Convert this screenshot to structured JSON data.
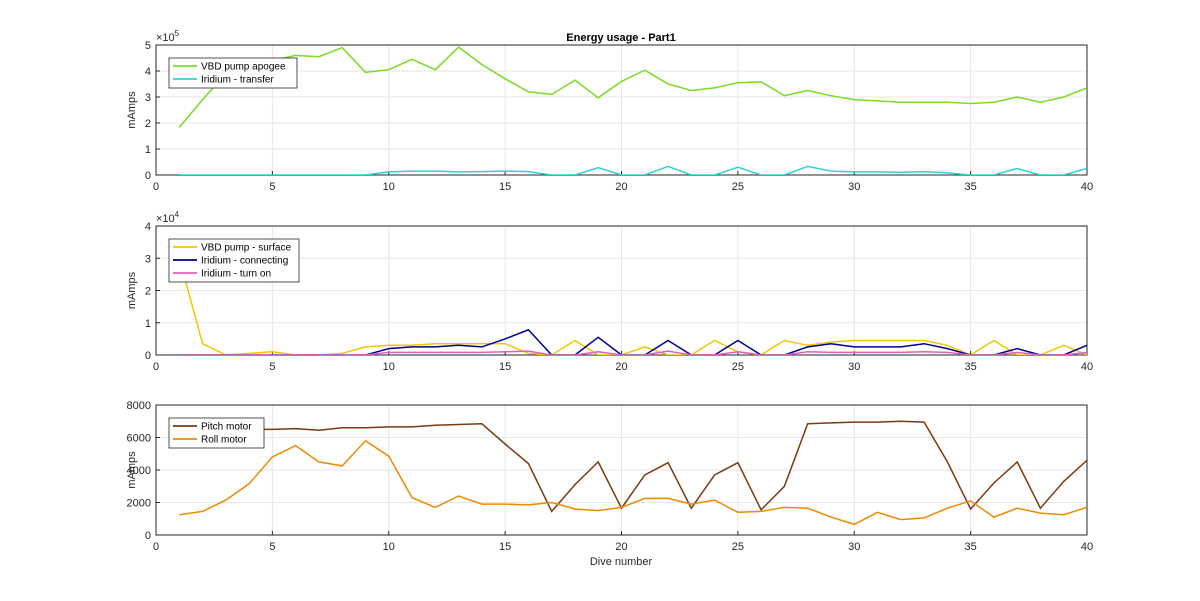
{
  "title": "Energy usage - Part1",
  "xlabel": "Dive number",
  "chart_data": [
    {
      "type": "line",
      "title": "Energy usage - Part1",
      "xlabel": "",
      "ylabel": "mAmps",
      "xlim": [
        0,
        40
      ],
      "ylim": [
        0,
        5
      ],
      "exponent": "5",
      "xticks": [
        "0",
        "5",
        "10",
        "15",
        "20",
        "25",
        "30",
        "35",
        "40"
      ],
      "yticks": [
        "0",
        "1",
        "2",
        "3",
        "4",
        "5"
      ],
      "grid": true,
      "legend_position": "top-left",
      "x": [
        1,
        2,
        3,
        4,
        5,
        6,
        7,
        8,
        9,
        10,
        11,
        12,
        13,
        14,
        15,
        16,
        17,
        18,
        19,
        20,
        21,
        22,
        23,
        24,
        25,
        26,
        27,
        28,
        29,
        30,
        31,
        32,
        33,
        34,
        35,
        36,
        37,
        38,
        39,
        40
      ],
      "series": [
        {
          "name": "VBD pump apogee",
          "color": "#77dd22",
          "values": [
            1.83,
            2.9,
            3.9,
            4.2,
            4.4,
            4.6,
            4.55,
            4.9,
            3.95,
            4.05,
            4.45,
            4.05,
            4.92,
            4.25,
            3.7,
            3.2,
            3.1,
            3.65,
            2.97,
            3.6,
            4.03,
            3.5,
            3.25,
            3.35,
            3.55,
            3.58,
            3.05,
            3.25,
            3.05,
            2.9,
            2.85,
            2.8,
            2.8,
            2.8,
            2.75,
            2.8,
            3.0,
            2.8,
            3.0,
            3.35
          ]
        },
        {
          "name": "Iridium - transfer",
          "color": "#2ed2d8",
          "values": [
            0,
            0,
            0,
            0,
            0,
            0,
            0,
            0,
            0,
            0.12,
            0.15,
            0.15,
            0.12,
            0.13,
            0.15,
            0.13,
            0,
            0,
            0.28,
            0,
            0,
            0.33,
            0,
            0,
            0.3,
            0,
            0,
            0.33,
            0.15,
            0.12,
            0.12,
            0.1,
            0.13,
            0.08,
            0,
            0,
            0.25,
            0,
            0,
            0.25
          ]
        }
      ]
    },
    {
      "type": "line",
      "title": "",
      "xlabel": "",
      "ylabel": "mAmps",
      "xlim": [
        0,
        40
      ],
      "ylim": [
        0,
        4
      ],
      "exponent": "4",
      "xticks": [
        "0",
        "5",
        "10",
        "15",
        "20",
        "25",
        "30",
        "35",
        "40"
      ],
      "yticks": [
        "0",
        "1",
        "2",
        "3",
        "4"
      ],
      "grid": true,
      "legend_position": "top-left",
      "x": [
        1,
        2,
        3,
        4,
        5,
        6,
        7,
        8,
        9,
        10,
        11,
        12,
        13,
        14,
        15,
        16,
        17,
        18,
        19,
        20,
        21,
        22,
        23,
        24,
        25,
        26,
        27,
        28,
        29,
        30,
        31,
        32,
        33,
        34,
        35,
        36,
        37,
        38,
        39,
        40
      ],
      "series": [
        {
          "name": "VBD pump - surface",
          "color": "#f0c800",
          "values": [
            3.0,
            0.35,
            0,
            0.05,
            0.1,
            0,
            0,
            0.05,
            0.25,
            0.3,
            0.3,
            0.35,
            0.35,
            0.35,
            0.35,
            0.05,
            0,
            0.45,
            0,
            0,
            0.25,
            0,
            0,
            0.45,
            0.1,
            0,
            0.45,
            0.3,
            0.4,
            0.45,
            0.45,
            0.45,
            0.45,
            0.3,
            0,
            0.45,
            0,
            0,
            0.3,
            0
          ]
        },
        {
          "name": "Iridium - connecting",
          "color": "#00008b",
          "values": [
            0,
            0,
            0,
            0,
            0,
            0,
            0,
            0,
            0,
            0.2,
            0.25,
            0.25,
            0.3,
            0.25,
            0.5,
            0.78,
            0,
            0,
            0.55,
            0,
            0,
            0.45,
            0,
            0,
            0.45,
            0,
            0,
            0.25,
            0.35,
            0.25,
            0.25,
            0.25,
            0.35,
            0.2,
            0,
            0,
            0.2,
            0,
            0,
            0.3
          ]
        },
        {
          "name": "Iridium - turn on",
          "color": "#e060c0",
          "values": [
            0,
            0,
            0,
            0,
            0,
            0,
            0,
            0,
            0,
            0.08,
            0.08,
            0.08,
            0.08,
            0.08,
            0.1,
            0.12,
            0,
            0,
            0.1,
            0,
            0,
            0.12,
            0,
            0,
            0.1,
            0,
            0,
            0.1,
            0.08,
            0.08,
            0.08,
            0.08,
            0.1,
            0.08,
            0,
            0,
            0.08,
            0,
            0,
            0.08
          ]
        }
      ]
    },
    {
      "type": "line",
      "title": "",
      "xlabel": "Dive number",
      "ylabel": "mAmps",
      "xlim": [
        0,
        40
      ],
      "ylim": [
        0,
        8000
      ],
      "exponent": "",
      "xticks": [
        "0",
        "5",
        "10",
        "15",
        "20",
        "25",
        "30",
        "35",
        "40"
      ],
      "yticks": [
        "0",
        "2000",
        "4000",
        "6000",
        "8000"
      ],
      "grid": true,
      "legend_position": "top-left",
      "x": [
        1,
        2,
        3,
        4,
        5,
        6,
        7,
        8,
        9,
        10,
        11,
        12,
        13,
        14,
        15,
        16,
        17,
        18,
        19,
        20,
        21,
        22,
        23,
        24,
        25,
        26,
        27,
        28,
        29,
        30,
        31,
        32,
        33,
        34,
        35,
        36,
        37,
        38,
        39,
        40
      ],
      "series": [
        {
          "name": "Pitch motor",
          "color": "#7a3a12",
          "values": [
            6400,
            6500,
            6550,
            6500,
            6500,
            6550,
            6450,
            6600,
            6600,
            6650,
            6650,
            6750,
            6800,
            6850,
            5600,
            4400,
            1450,
            3100,
            4500,
            1650,
            3700,
            4450,
            1650,
            3700,
            4450,
            1550,
            3000,
            6850,
            6900,
            6950,
            6950,
            7000,
            6950,
            4500,
            1600,
            3200,
            4500,
            1650,
            3300,
            4600
          ]
        },
        {
          "name": "Roll motor",
          "color": "#ee8a00",
          "values": [
            1250,
            1450,
            2150,
            3150,
            4800,
            5500,
            4500,
            4250,
            5800,
            4850,
            2300,
            1700,
            2400,
            1900,
            1900,
            1850,
            2000,
            1600,
            1500,
            1700,
            2250,
            2250,
            1900,
            2150,
            1400,
            1450,
            1700,
            1650,
            1100,
            650,
            1400,
            950,
            1050,
            1650,
            2100,
            1100,
            1650,
            1350,
            1250,
            1700
          ]
        }
      ]
    }
  ]
}
